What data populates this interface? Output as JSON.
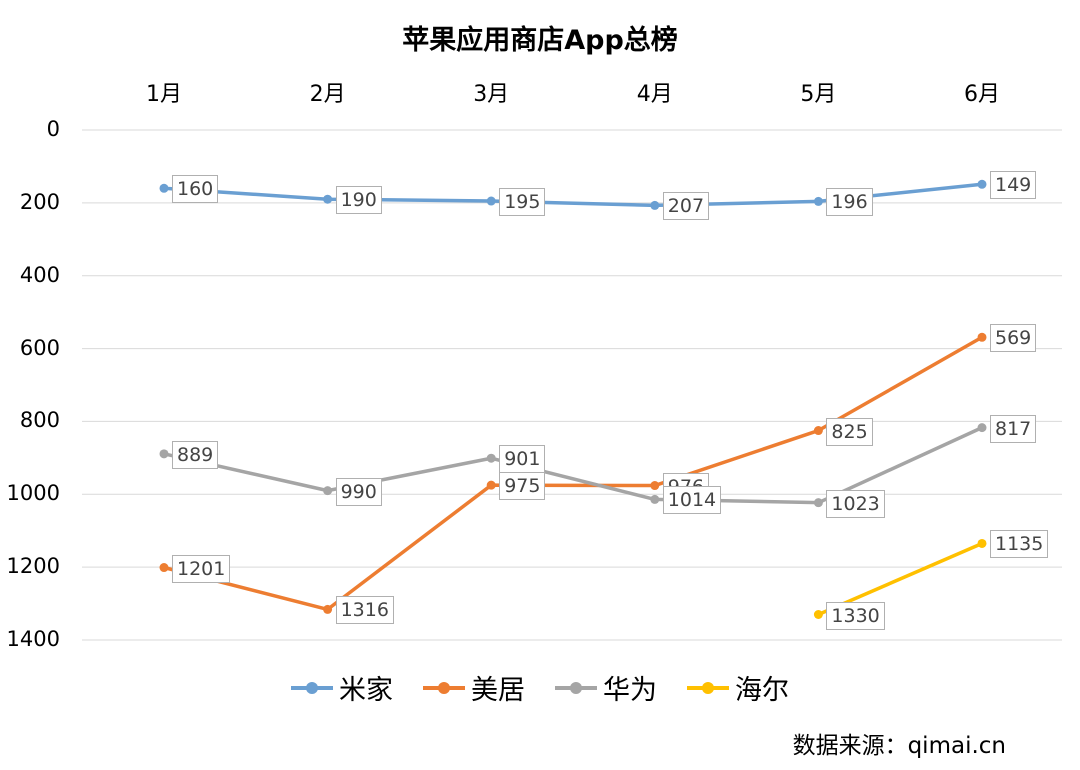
{
  "chart_data": {
    "type": "line",
    "title": "苹果应用商店App总榜",
    "categories": [
      "1月",
      "2月",
      "3月",
      "4月",
      "5月",
      "6月"
    ],
    "ylim": [
      0,
      1400
    ],
    "y_inverted": true,
    "yticks": [
      "0",
      "200",
      "400",
      "600",
      "800",
      "1000",
      "1200",
      "1400"
    ],
    "xaxis_position": "top",
    "grid": true,
    "legend_position": "bottom",
    "series": [
      {
        "name": "米家",
        "color": "#6a9fd2",
        "values": [
          160,
          190,
          195,
          207,
          196,
          149
        ]
      },
      {
        "name": "美居",
        "color": "#ed7d31",
        "values": [
          1201,
          1316,
          975,
          976,
          825,
          569
        ]
      },
      {
        "name": "华为",
        "color": "#a5a5a5",
        "values": [
          889,
          990,
          901,
          1014,
          1023,
          817
        ]
      },
      {
        "name": "海尔",
        "color": "#ffc000",
        "values": [
          null,
          null,
          null,
          null,
          1330,
          1135
        ]
      }
    ]
  },
  "source_text": "数据来源：qimai.cn"
}
